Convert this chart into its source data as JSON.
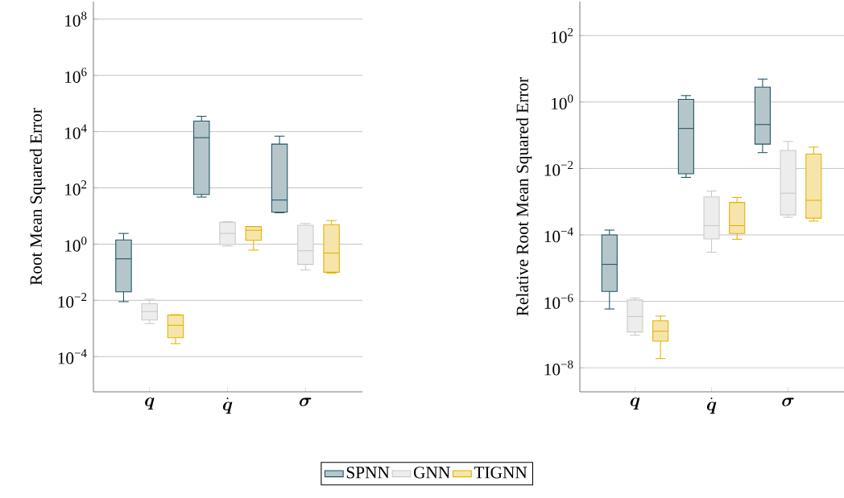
{
  "chart_data": [
    {
      "type": "box",
      "ylabel": "Root Mean Squared Error",
      "categories": [
        "\\boldsymbol{q}",
        "\\dot{\\boldsymbol{q}}",
        "\\boldsymbol{\\sigma}"
      ],
      "log": "y",
      "grid": "y",
      "legend": "bottom",
      "ylim": [
        5.6e-06,
        420000000.0
      ],
      "yticks": [
        {
          "value": 0.0001,
          "label": "10$^{−4}$"
        },
        {
          "value": 0.01,
          "label": "10$^{−2}$"
        },
        {
          "value": 1,
          "label": "10$^{0}$"
        },
        {
          "value": 100.0,
          "label": "10$^{2}$"
        },
        {
          "value": 10000.0,
          "label": "10$^{4}$"
        },
        {
          "value": 1000000.0,
          "label": "10$^{6}$"
        },
        {
          "value": 100000000.0,
          "label": "10$^{8}$"
        }
      ],
      "series": [
        {
          "name": "SPNN",
          "color": "#1e5361",
          "boxes": [
            {
              "low": 0.009,
              "q1": 0.02,
              "median": 0.3,
              "q3": 1.4,
              "high": 2.4
            },
            {
              "low": 47,
              "q1": 58,
              "median": 6100,
              "q3": 23600,
              "high": 35000
            },
            {
              "low": 13,
              "q1": 13.7,
              "median": 37,
              "q3": 3600,
              "high": 6900
            }
          ]
        },
        {
          "name": "GNN",
          "color": "#c8c9cc",
          "boxes": [
            {
              "low": 0.0015,
              "q1": 0.002,
              "median": 0.004,
              "q3": 0.0076,
              "high": 0.011
            },
            {
              "low": 0.85,
              "q1": 0.96,
              "median": 2.4,
              "q3": 6,
              "high": 6.3
            },
            {
              "low": 0.12,
              "q1": 0.19,
              "median": 0.58,
              "q3": 4.7,
              "high": 5.4
            }
          ]
        },
        {
          "name": "TIGNN",
          "color": "#e5b000",
          "boxes": [
            {
              "low": 0.00029,
              "q1": 0.00047,
              "median": 0.0013,
              "q3": 0.003,
              "high": 0.0031
            },
            {
              "low": 0.61,
              "q1": 1.36,
              "median": 3.1,
              "q3": 4.2,
              "high": 4.2
            },
            {
              "low": 0.093,
              "q1": 0.1,
              "median": 0.48,
              "q3": 4.9,
              "high": 6.9
            }
          ]
        }
      ]
    },
    {
      "type": "box",
      "ylabel": "Relative Root Mean Squared Error",
      "categories": [
        "\\boldsymbol{q}",
        "\\dot{\\boldsymbol{q}}",
        "\\boldsymbol{\\sigma}"
      ],
      "log": "y",
      "grid": "y",
      "ylim": [
        1.9e-09,
        1050
      ],
      "yticks": [
        {
          "value": 1e-08,
          "label": "10$^{−8}$"
        },
        {
          "value": 1e-06,
          "label": "10$^{−6}$"
        },
        {
          "value": 0.0001,
          "label": "10$^{−4}$"
        },
        {
          "value": 0.01,
          "label": "10$^{−2}$"
        },
        {
          "value": 1,
          "label": "10$^{0}$"
        },
        {
          "value": 100.0,
          "label": "10$^{2}$"
        }
      ],
      "series": [
        {
          "color": "#1e5361",
          "boxes": [
            {
              "low": 5.9e-07,
              "q1": 2e-06,
              "median": 1.3e-05,
              "q3": 0.0001,
              "high": 0.00014
            },
            {
              "low": 0.0054,
              "q1": 0.0069,
              "median": 0.16,
              "q3": 1.2,
              "high": 1.56
            },
            {
              "low": 0.03,
              "q1": 0.054,
              "median": 0.21,
              "q3": 2.8,
              "high": 4.9
            }
          ]
        },
        {
          "color": "#c8c9cc",
          "boxes": [
            {
              "low": 9.6e-08,
              "q1": 1.2e-07,
              "median": 3.5e-07,
              "q3": 1.1e-06,
              "high": 1.26e-06
            },
            {
              "low": 3e-05,
              "q1": 7.6e-05,
              "median": 0.00019,
              "q3": 0.0014,
              "high": 0.0021
            },
            {
              "low": 0.00034,
              "q1": 0.0004,
              "median": 0.0018,
              "q3": 0.035,
              "high": 0.065
            }
          ]
        },
        {
          "color": "#e5b000",
          "boxes": [
            {
              "low": 1.9e-08,
              "q1": 6.4e-08,
              "median": 1.27e-07,
              "q3": 2.6e-07,
              "high": 3.6e-07
            },
            {
              "low": 7.4e-05,
              "q1": 0.00011,
              "median": 0.00019,
              "q3": 0.00095,
              "high": 0.00134
            },
            {
              "low": 0.00026,
              "q1": 0.00032,
              "median": 0.0011,
              "q3": 0.027,
              "high": 0.044
            }
          ]
        }
      ]
    }
  ]
}
